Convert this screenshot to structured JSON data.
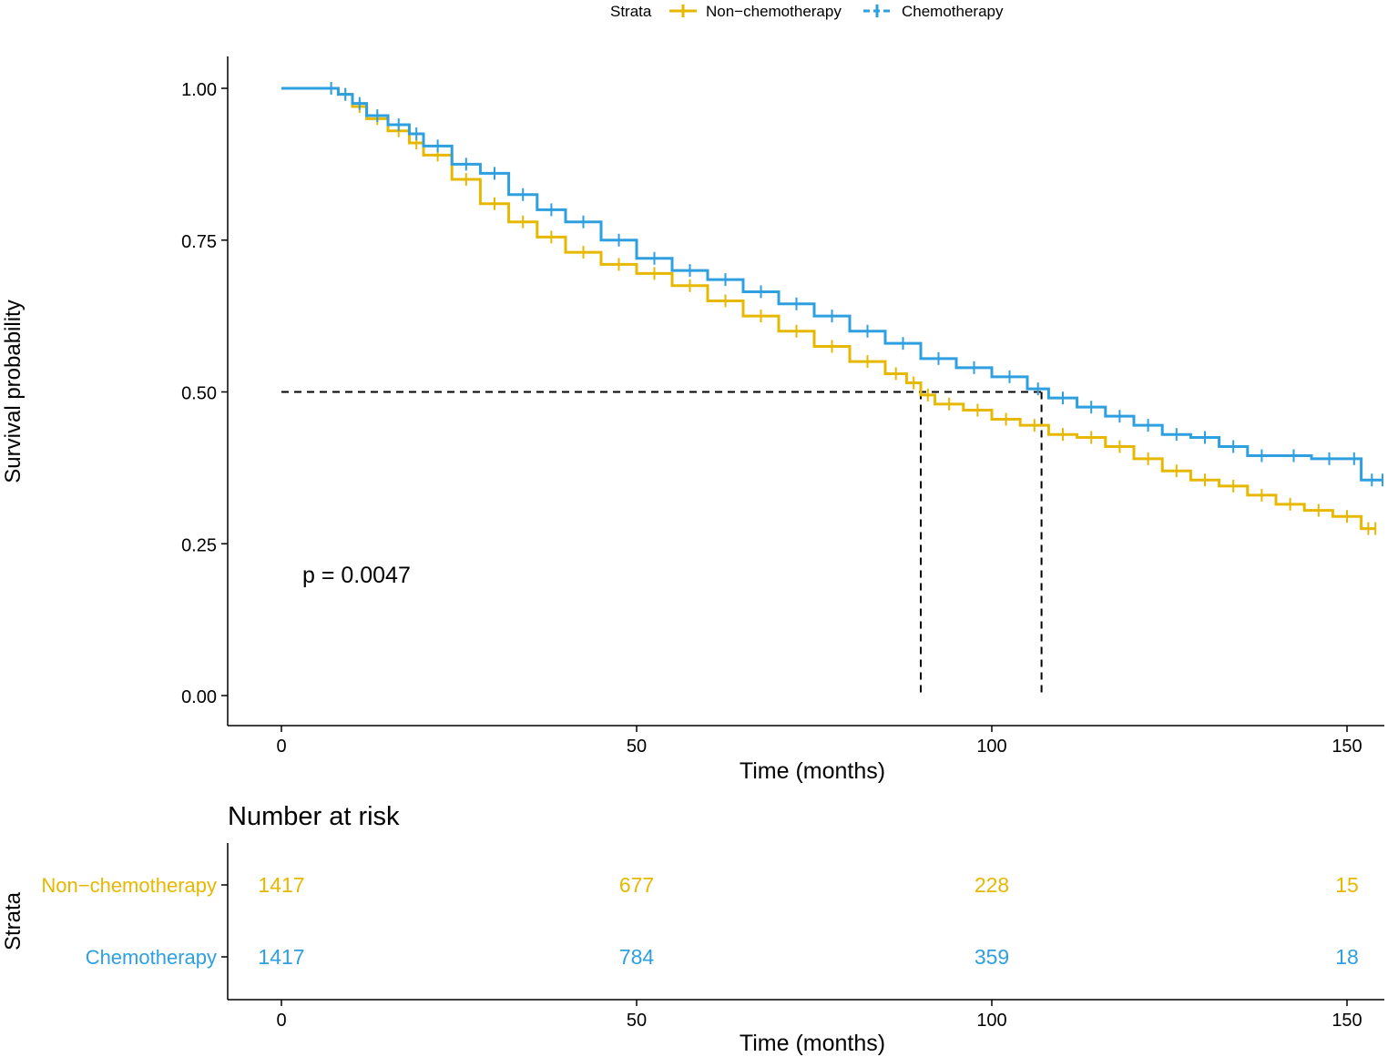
{
  "colors": {
    "non_chemo": "#E7B800",
    "chemo": "#2E9FDF",
    "axis": "#000000",
    "ref_line": "#000000"
  },
  "legend": {
    "title": "Strata",
    "entries": [
      {
        "label": "Non−chemotherapy",
        "color": "#E7B800"
      },
      {
        "label": "Chemotherapy",
        "color": "#2E9FDF"
      }
    ]
  },
  "chart_data": [
    {
      "type": "line",
      "subtype": "kaplan-meier step",
      "title": "",
      "xlabel": "Time (months)",
      "ylabel": "Survival probability",
      "xlim": [
        -7.5,
        156
      ],
      "ylim": [
        -0.05,
        1.05
      ],
      "xticks": [
        0,
        50,
        100,
        150
      ],
      "yticks": [
        0,
        0.25,
        0.5,
        0.75,
        1.0
      ],
      "ytick_labels": [
        "0.00",
        "0.25",
        "0.50",
        "0.75",
        "1.00"
      ],
      "annotation": "p = 0.0047",
      "grid": false,
      "legend_position": "top",
      "median_survival": [
        {
          "series": "Non−chemotherapy",
          "x": 90,
          "y": 0.5
        },
        {
          "series": "Chemotherapy",
          "x": 107,
          "y": 0.5
        }
      ],
      "series": [
        {
          "name": "Non−chemotherapy",
          "color": "#E7B800",
          "x": [
            0,
            6,
            8,
            10,
            12,
            15,
            18,
            20,
            24,
            28,
            32,
            36,
            40,
            45,
            50,
            55,
            60,
            65,
            70,
            75,
            80,
            85,
            88,
            90,
            92,
            96,
            100,
            104,
            108,
            112,
            116,
            120,
            124,
            128,
            132,
            136,
            140,
            144,
            148,
            152,
            154
          ],
          "y": [
            1.0,
            1.0,
            0.99,
            0.97,
            0.95,
            0.93,
            0.91,
            0.89,
            0.85,
            0.81,
            0.78,
            0.755,
            0.73,
            0.71,
            0.695,
            0.675,
            0.65,
            0.625,
            0.6,
            0.575,
            0.55,
            0.53,
            0.515,
            0.495,
            0.48,
            0.47,
            0.455,
            0.445,
            0.43,
            0.425,
            0.41,
            0.39,
            0.37,
            0.355,
            0.345,
            0.33,
            0.315,
            0.305,
            0.295,
            0.275,
            0.275
          ]
        },
        {
          "name": "Chemotherapy",
          "color": "#2E9FDF",
          "x": [
            0,
            6,
            8,
            10,
            12,
            15,
            18,
            20,
            24,
            28,
            32,
            36,
            40,
            45,
            50,
            55,
            60,
            65,
            70,
            75,
            80,
            85,
            90,
            95,
            100,
            105,
            108,
            112,
            116,
            120,
            124,
            128,
            132,
            136,
            140,
            145,
            150,
            152,
            155
          ],
          "y": [
            1.0,
            1.0,
            0.99,
            0.975,
            0.955,
            0.94,
            0.925,
            0.905,
            0.875,
            0.86,
            0.825,
            0.8,
            0.78,
            0.75,
            0.72,
            0.7,
            0.685,
            0.665,
            0.645,
            0.625,
            0.6,
            0.58,
            0.555,
            0.54,
            0.525,
            0.505,
            0.49,
            0.475,
            0.46,
            0.445,
            0.43,
            0.425,
            0.41,
            0.395,
            0.395,
            0.39,
            0.39,
            0.355,
            0.355
          ]
        }
      ]
    },
    {
      "type": "table",
      "title": "Number at risk",
      "xlabel": "Time (months)",
      "ylabel": "Strata",
      "xticks": [
        0,
        50,
        100,
        150
      ],
      "rows": [
        {
          "name": "Non−chemotherapy",
          "color": "#E7B800",
          "values": [
            1417,
            677,
            228,
            15
          ]
        },
        {
          "name": "Chemotherapy",
          "color": "#2E9FDF",
          "values": [
            1417,
            784,
            359,
            18
          ]
        }
      ]
    }
  ]
}
